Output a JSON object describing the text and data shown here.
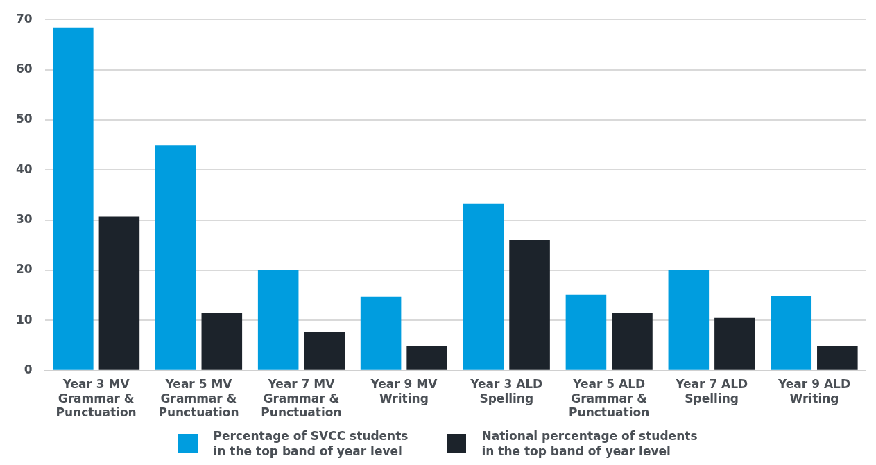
{
  "chart_data": {
    "type": "bar",
    "categories": [
      "Year 3 MV\nGrammar &\nPunctuation",
      "Year 5 MV\nGrammar &\nPunctuation",
      "Year 7 MV\nGrammar &\nPunctuation",
      "Year 9 MV\nWriting",
      "Year 3 ALD\nSpelling",
      "Year 5 ALD\nGrammar &\nPunctuation",
      "Year 7 ALD\nSpelling",
      "Year 9 ALD\nWriting"
    ],
    "series": [
      {
        "name": "Percentage of SVCC students\nin the top band of year level",
        "color": "#009ddf",
        "values": [
          68.4,
          45,
          20,
          14.8,
          33.3,
          15.2,
          20,
          14.9
        ]
      },
      {
        "name": "National percentage of students\nin the top band of year level",
        "color": "#1c232b",
        "values": [
          30.7,
          11.5,
          7.7,
          4.9,
          26,
          11.5,
          10.5,
          4.9
        ]
      }
    ],
    "ylim": [
      0,
      70
    ],
    "yticks": [
      0,
      10,
      20,
      30,
      40,
      50,
      60,
      70
    ],
    "grid": "y",
    "legend": "bottom"
  }
}
